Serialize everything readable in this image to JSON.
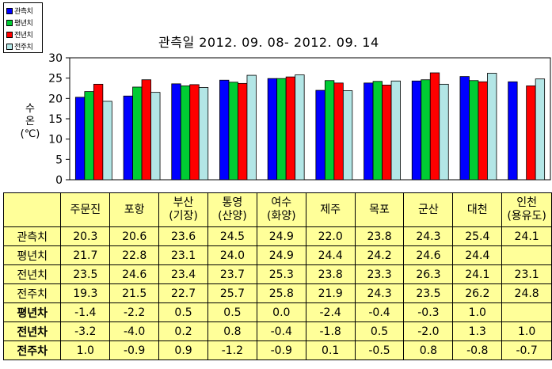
{
  "chart_data": {
    "type": "bar",
    "title": "관측일 2012. 09. 08-  2012. 09. 14",
    "ylabel": "수\n온\n(℃)",
    "ylim": [
      0,
      30
    ],
    "yticks": [
      0,
      5,
      10,
      15,
      20,
      25,
      30
    ],
    "categories": [
      "주문진",
      "포항",
      "부산\n(기장)",
      "통영\n(산양)",
      "여수\n(화양)",
      "제주",
      "목포",
      "군산",
      "대천",
      "인천\n(용유도)"
    ],
    "series": [
      {
        "name": "관측치",
        "color": "#0000ff",
        "values": [
          20.3,
          20.6,
          23.6,
          24.5,
          24.9,
          22.0,
          23.8,
          24.3,
          25.4,
          24.1
        ]
      },
      {
        "name": "평년치",
        "color": "#00cc33",
        "values": [
          21.7,
          22.8,
          23.1,
          24.0,
          24.9,
          24.4,
          24.2,
          24.6,
          24.4,
          null
        ]
      },
      {
        "name": "전년치",
        "color": "#ff0000",
        "values": [
          23.5,
          24.6,
          23.4,
          23.7,
          25.3,
          23.8,
          23.3,
          26.3,
          24.1,
          23.1
        ]
      },
      {
        "name": "전주치",
        "color": "#b3e6e6",
        "values": [
          19.3,
          21.5,
          22.7,
          25.7,
          25.8,
          21.9,
          24.3,
          23.5,
          26.2,
          24.8
        ]
      }
    ],
    "grid": false,
    "legend": "top-left"
  },
  "table": {
    "header": [
      "",
      "주문진",
      "포항",
      "부산\n(기장)",
      "통영\n(산양)",
      "여수\n(화양)",
      "제주",
      "목포",
      "군산",
      "대천",
      "인천\n(용유도)"
    ],
    "rows": [
      {
        "label": "관측치",
        "bold": false,
        "values": [
          "20.3",
          "20.6",
          "23.6",
          "24.5",
          "24.9",
          "22.0",
          "23.8",
          "24.3",
          "25.4",
          "24.1"
        ]
      },
      {
        "label": "평년치",
        "bold": false,
        "values": [
          "21.7",
          "22.8",
          "23.1",
          "24.0",
          "24.9",
          "24.4",
          "24.2",
          "24.6",
          "24.4",
          ""
        ]
      },
      {
        "label": "전년치",
        "bold": false,
        "values": [
          "23.5",
          "24.6",
          "23.4",
          "23.7",
          "25.3",
          "23.8",
          "23.3",
          "26.3",
          "24.1",
          "23.1"
        ]
      },
      {
        "label": "전주치",
        "bold": false,
        "values": [
          "19.3",
          "21.5",
          "22.7",
          "25.7",
          "25.8",
          "21.9",
          "24.3",
          "23.5",
          "26.2",
          "24.8"
        ]
      },
      {
        "label": "평년차",
        "bold": true,
        "values": [
          "-1.4",
          "-2.2",
          "0.5",
          "0.5",
          "0.0",
          "-2.4",
          "-0.4",
          "-0.3",
          "1.0",
          ""
        ]
      },
      {
        "label": "전년차",
        "bold": true,
        "values": [
          "-3.2",
          "-4.0",
          "0.2",
          "0.8",
          "-0.4",
          "-1.8",
          "0.5",
          "-2.0",
          "1.3",
          "1.0"
        ]
      },
      {
        "label": "전주차",
        "bold": true,
        "values": [
          "1.0",
          "-0.9",
          "0.9",
          "-1.2",
          "-0.9",
          "0.1",
          "-0.5",
          "0.8",
          "-0.8",
          "-0.7"
        ]
      }
    ]
  }
}
